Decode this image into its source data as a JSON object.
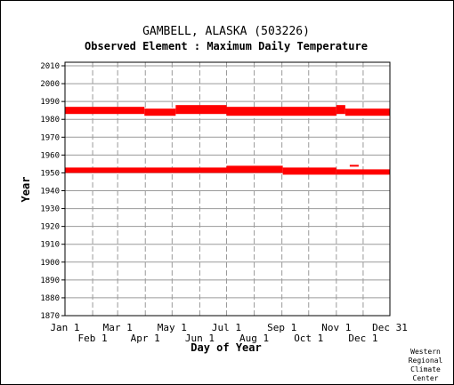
{
  "chart_data": {
    "type": "scatter",
    "title": "GAMBELL, ALASKA   (503226)",
    "subtitle": "Observed Element : Maximum Daily Temperature",
    "xlabel": "Day of Year",
    "ylabel": "Year",
    "credit": [
      "Western",
      "Regional",
      "Climate",
      "Center"
    ],
    "xlim": [
      1,
      365
    ],
    "ylim": [
      1870,
      2012
    ],
    "x_ticks_top": [
      {
        "label": "Jan 1",
        "day": 1
      },
      {
        "label": "Mar 1",
        "day": 60
      },
      {
        "label": "May 1",
        "day": 121
      },
      {
        "label": "Jul 1",
        "day": 182
      },
      {
        "label": "Sep 1",
        "day": 244
      },
      {
        "label": "Nov 1",
        "day": 305
      },
      {
        "label": "Dec 31",
        "day": 365
      }
    ],
    "x_ticks_bottom": [
      {
        "label": "Feb 1",
        "day": 32
      },
      {
        "label": "Apr 1",
        "day": 91
      },
      {
        "label": "Jun 1",
        "day": 152
      },
      {
        "label": "Aug 1",
        "day": 213
      },
      {
        "label": "Oct 1",
        "day": 274
      },
      {
        "label": "Dec 1",
        "day": 335
      }
    ],
    "y_ticks": [
      1870,
      1880,
      1890,
      1900,
      1910,
      1920,
      1930,
      1940,
      1950,
      1960,
      1970,
      1980,
      1990,
      2000,
      2010
    ],
    "grid": true,
    "color": "#ff0000",
    "data_ranges": [
      {
        "start_day": 1,
        "end_day": 90,
        "year_low": 1983,
        "year_high": 1987
      },
      {
        "start_day": 90,
        "end_day": 125,
        "year_low": 1982,
        "year_high": 1986
      },
      {
        "start_day": 125,
        "end_day": 182,
        "year_low": 1983,
        "year_high": 1988
      },
      {
        "start_day": 182,
        "end_day": 305,
        "year_low": 1982,
        "year_high": 1987
      },
      {
        "start_day": 305,
        "end_day": 315,
        "year_low": 1983,
        "year_high": 1988
      },
      {
        "start_day": 315,
        "end_day": 365,
        "year_low": 1982,
        "year_high": 1986
      },
      {
        "start_day": 1,
        "end_day": 182,
        "year_low": 1950,
        "year_high": 1953
      },
      {
        "start_day": 182,
        "end_day": 245,
        "year_low": 1950,
        "year_high": 1954
      },
      {
        "start_day": 245,
        "end_day": 305,
        "year_low": 1949,
        "year_high": 1953
      },
      {
        "start_day": 305,
        "end_day": 365,
        "year_low": 1949,
        "year_high": 1952
      },
      {
        "start_day": 320,
        "end_day": 330,
        "year_low": 1953.5,
        "year_high": 1954.5
      }
    ]
  }
}
